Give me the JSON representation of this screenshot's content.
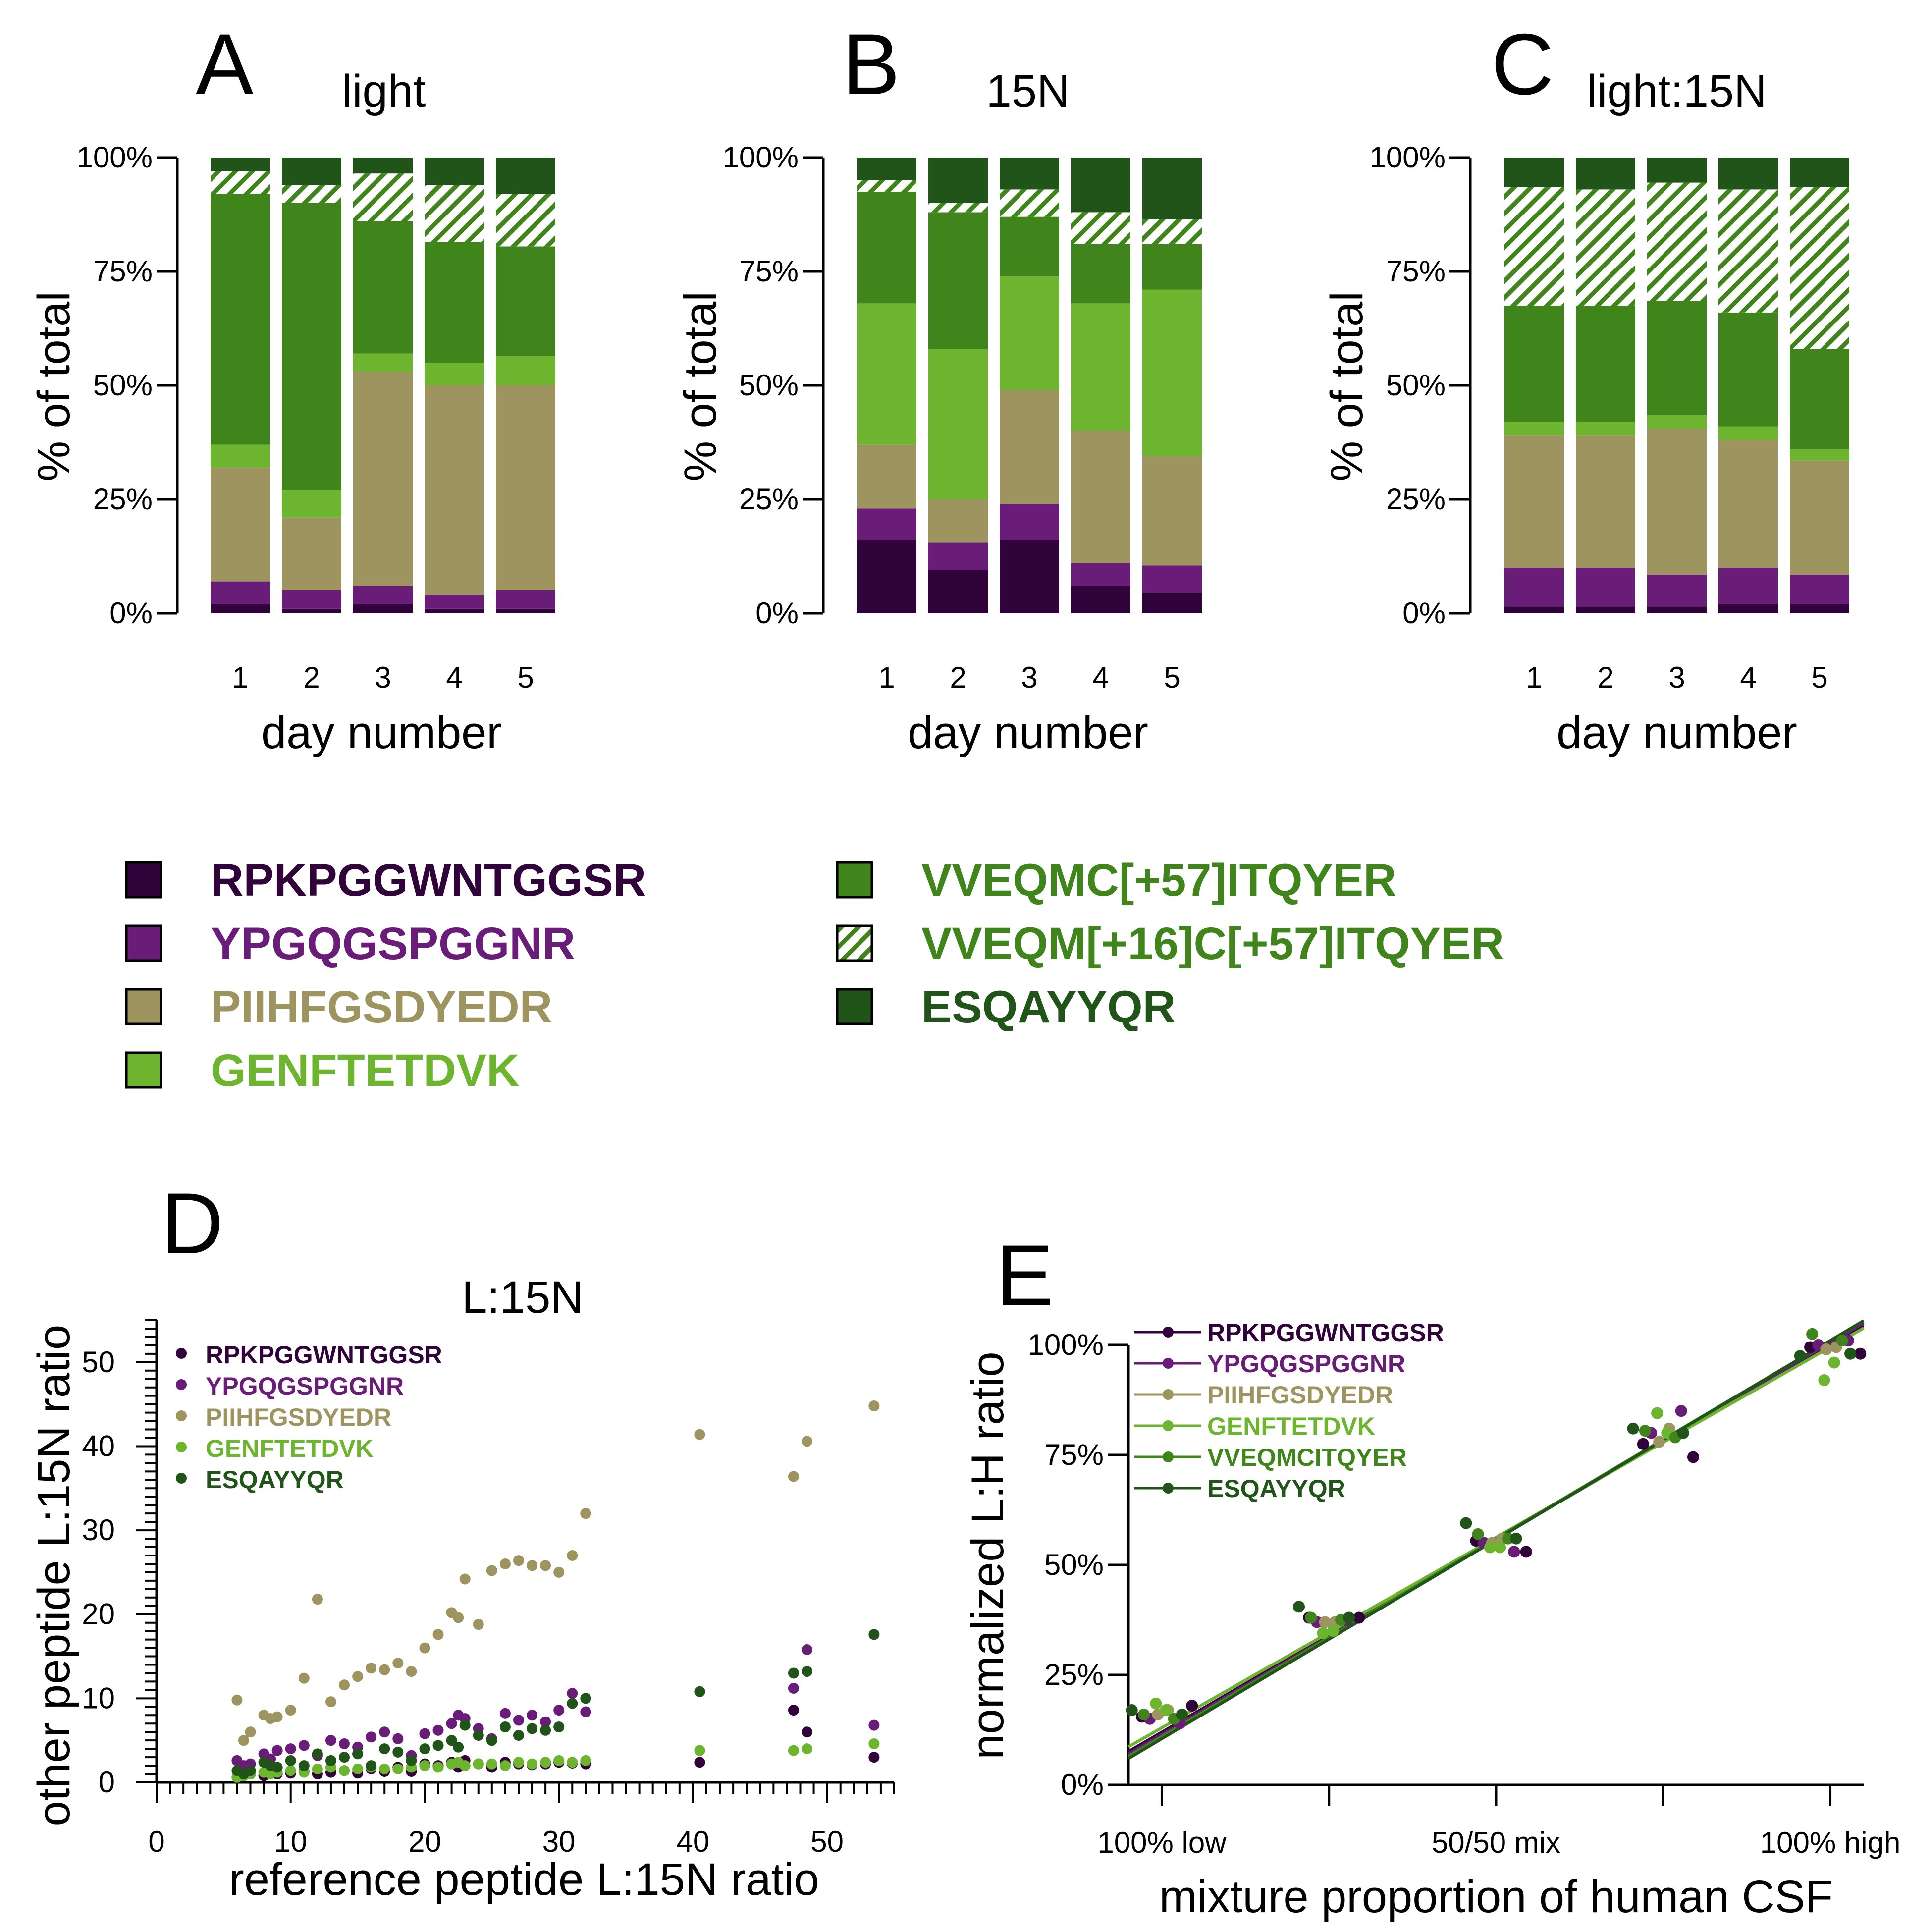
{
  "colors": {
    "RPKPGGWNTGGSR": "#30043a",
    "YPGQGSPGGNR": "#6a1d78",
    "PIIHFGSDYEDR": "#9e9460",
    "GENFTETDVK": "#6db42f",
    "VVEQMC[+57]ITQYER": "#3f851b",
    "VVEQM[+16]C[+57]ITQYER": "#3f851b",
    "VVEQMCITQYER": "#3f851b",
    "ESQAYYQR": "#215419"
  },
  "legend": {
    "items": [
      {
        "label": "RPKPGGWNTGGSR",
        "hatched": false
      },
      {
        "label": "YPGQGSPGGNR",
        "hatched": false
      },
      {
        "label": "PIIHFGSDYEDR",
        "hatched": false
      },
      {
        "label": "GENFTETDVK",
        "hatched": false
      },
      {
        "label": "VVEQMC[+57]ITQYER",
        "hatched": false
      },
      {
        "label": "VVEQM[+16]C[+57]ITQYER",
        "hatched": true
      },
      {
        "label": "ESQAYYQR",
        "hatched": false
      }
    ]
  },
  "chart_data": [
    {
      "panel": "A",
      "type": "bar",
      "stacked": true,
      "title": "light",
      "xlabel": "day number",
      "ylabel": "% of total",
      "ylim": [
        0,
        100
      ],
      "yticks": [
        "0%",
        "25%",
        "50%",
        "75%",
        "100%"
      ],
      "categories": [
        "1",
        "2",
        "3",
        "4",
        "5"
      ],
      "series": [
        {
          "name": "RPKPGGWNTGGSR",
          "values": [
            2,
            1,
            2,
            1,
            1
          ]
        },
        {
          "name": "YPGQGSPGGNR",
          "values": [
            5,
            4,
            4,
            3,
            4
          ]
        },
        {
          "name": "PIIHFGSDYEDR",
          "values": [
            25,
            16,
            47,
            46,
            45
          ]
        },
        {
          "name": "GENFTETDVK",
          "values": [
            5,
            6,
            4,
            5,
            6.5
          ]
        },
        {
          "name": "VVEQMC[+57]ITQYER",
          "values": [
            55,
            63,
            29,
            26.5,
            24
          ]
        },
        {
          "name": "VVEQM[+16]C[+57]ITQYER",
          "values": [
            5,
            4,
            10.5,
            12.5,
            11.5
          ]
        },
        {
          "name": "ESQAYYQR",
          "values": [
            3,
            6,
            3.5,
            6,
            8
          ]
        }
      ]
    },
    {
      "panel": "B",
      "type": "bar",
      "stacked": true,
      "title": "15N",
      "xlabel": "day number",
      "ylabel": "% of total",
      "ylim": [
        0,
        100
      ],
      "yticks": [
        "0%",
        "25%",
        "50%",
        "75%",
        "100%"
      ],
      "categories": [
        "1",
        "2",
        "3",
        "4",
        "5"
      ],
      "series": [
        {
          "name": "RPKPGGWNTGGSR",
          "values": [
            16,
            9.5,
            16,
            6,
            4.5
          ]
        },
        {
          "name": "YPGQGSPGGNR",
          "values": [
            7,
            6,
            8,
            5,
            6
          ]
        },
        {
          "name": "PIIHFGSDYEDR",
          "values": [
            14,
            9.5,
            25,
            29,
            24
          ]
        },
        {
          "name": "GENFTETDVK",
          "values": [
            31,
            33,
            25,
            28,
            36.5
          ]
        },
        {
          "name": "VVEQMC[+57]ITQYER",
          "values": [
            24.5,
            30,
            13,
            13,
            10
          ]
        },
        {
          "name": "VVEQM[+16]C[+57]ITQYER",
          "values": [
            2.5,
            2,
            6,
            7,
            5.5
          ]
        },
        {
          "name": "ESQAYYQR",
          "values": [
            5,
            10,
            7,
            12,
            13.5
          ]
        }
      ]
    },
    {
      "panel": "C",
      "type": "bar",
      "stacked": true,
      "title": "light:15N",
      "xlabel": "day number",
      "ylabel": "% of total",
      "ylim": [
        0,
        100
      ],
      "yticks": [
        "0%",
        "25%",
        "50%",
        "75%",
        "100%"
      ],
      "categories": [
        "1",
        "2",
        "3",
        "4",
        "5"
      ],
      "series": [
        {
          "name": "RPKPGGWNTGGSR",
          "values": [
            1.5,
            1.5,
            1.5,
            2,
            2
          ]
        },
        {
          "name": "YPGQGSPGGNR",
          "values": [
            8.5,
            8.5,
            7,
            8,
            6.5
          ]
        },
        {
          "name": "PIIHFGSDYEDR",
          "values": [
            29,
            29,
            32,
            28,
            25
          ]
        },
        {
          "name": "GENFTETDVK",
          "values": [
            3,
            3,
            3,
            3,
            2.5
          ]
        },
        {
          "name": "VVEQMC[+57]ITQYER",
          "values": [
            25.5,
            25.5,
            25,
            25,
            22
          ]
        },
        {
          "name": "VVEQM[+16]C[+57]ITQYER",
          "values": [
            26,
            25.5,
            26,
            27,
            35.5
          ]
        },
        {
          "name": "ESQAYYQR",
          "values": [
            6.5,
            7,
            5.5,
            7,
            6.5
          ]
        }
      ]
    },
    {
      "panel": "D",
      "type": "scatter",
      "title": "L:15N",
      "xlabel": "reference peptide L:15N ratio",
      "ylabel": "other peptide L:15N ratio",
      "xlim": [
        0,
        55
      ],
      "ylim": [
        0,
        55
      ],
      "xticks": [
        0,
        10,
        20,
        30,
        40,
        50
      ],
      "yticks": [
        0,
        10,
        20,
        30,
        40,
        50
      ],
      "x": [
        6,
        6.5,
        7,
        8,
        8.5,
        9,
        10,
        11,
        12,
        13,
        14,
        15,
        16,
        17,
        18,
        19,
        20,
        21,
        22,
        22.5,
        23,
        24,
        25,
        26,
        27,
        28,
        29,
        30,
        31,
        32,
        40.5,
        47.5,
        48.5,
        53.5
      ],
      "series": [
        {
          "name": "RPKPGGWNTGGSR",
          "values": [
            0.6,
            0.8,
            1,
            0.8,
            1.2,
            1,
            1.1,
            1.3,
            1,
            1.2,
            1.4,
            1.1,
            1.6,
            1.3,
            1.8,
            1.3,
            2.2,
            2,
            2.4,
            1.8,
            2.6,
            2.2,
            1.8,
            2.4,
            2.2,
            2.1,
            2.2,
            2.4,
            2.3,
            2.2,
            2.4,
            8.6,
            6,
            3
          ]
        },
        {
          "name": "YPGQGSPGGNR",
          "values": [
            2.6,
            2,
            2.2,
            3.4,
            2.8,
            3.8,
            4,
            4.4,
            3.2,
            5,
            4.6,
            4.2,
            5.4,
            6,
            5.2,
            3.2,
            5.8,
            6.2,
            7,
            8,
            7.6,
            6.4,
            5.2,
            8.2,
            7.4,
            8,
            7.2,
            8.6,
            10.6,
            8.4,
            10.8,
            11.2,
            15.8,
            6.8
          ]
        },
        {
          "name": "PIIHFGSDYEDR",
          "values": [
            9.8,
            5,
            6,
            8,
            7.6,
            7.8,
            8.6,
            12.4,
            21.8,
            9.6,
            11.6,
            12.6,
            13.6,
            13.4,
            14.2,
            13.2,
            16,
            17.6,
            20.2,
            19.6,
            24.2,
            18.8,
            25.2,
            26,
            26.4,
            25.8,
            25.8,
            25,
            27,
            32,
            41.4,
            36.4,
            40.6,
            44.8
          ]
        },
        {
          "name": "GENFTETDVK",
          "values": [
            0.6,
            0.8,
            1,
            1.2,
            1,
            1.2,
            1.4,
            1.2,
            1.6,
            1.8,
            1.4,
            1.6,
            1.8,
            1.6,
            1.6,
            1.8,
            2,
            1.8,
            2.2,
            2.4,
            2,
            2.2,
            2.2,
            2,
            2.4,
            2.2,
            2.4,
            2.6,
            2.4,
            2.6,
            3.8,
            3.8,
            4,
            4.6
          ]
        },
        {
          "name": "ESQAYYQR",
          "values": [
            1.4,
            1,
            1.4,
            2.4,
            2,
            1.8,
            2.6,
            2,
            3.4,
            2.6,
            3,
            3.4,
            2,
            4,
            3.6,
            2.6,
            4,
            4.4,
            5,
            4.2,
            6.8,
            5.6,
            5,
            6.6,
            5.6,
            6.4,
            6.2,
            6.6,
            9.4,
            10,
            10.8,
            13,
            13.2,
            17.6
          ]
        }
      ]
    },
    {
      "panel": "E",
      "type": "scatter",
      "title": "",
      "xlabel": "mixture proportion of human CSF",
      "ylabel": "normalized L:H ratio",
      "xlim": [
        -0.05,
        1.05
      ],
      "ylim": [
        0,
        100
      ],
      "xtick_positions": [
        0,
        0.25,
        0.5,
        0.75,
        1
      ],
      "xticks": [
        "100% low",
        "",
        "50/50 mix",
        "",
        "100% high"
      ],
      "yticks": [
        "0%",
        "25%",
        "50%",
        "75%",
        "100%"
      ],
      "x": [
        0,
        0.25,
        0.5,
        0.75,
        1
      ],
      "series": [
        {
          "name": "RPKPGGWNTGGSR",
          "values": [
            15.5,
            38,
            55.5,
            77.5,
            99.5
          ],
          "points": [
            18,
            38,
            53,
            74.5,
            98
          ],
          "fit": [
            12,
            100
          ]
        },
        {
          "name": "YPGQGSPGGNR",
          "values": [
            15,
            37,
            55,
            80,
            100
          ],
          "points": [
            14,
            37.5,
            53,
            85,
            101
          ],
          "fit": [
            11.5,
            100.5
          ]
        },
        {
          "name": "PIIHFGSDYEDR",
          "values": [
            16,
            37,
            55,
            78,
            99
          ],
          "points": [
            17,
            37,
            56,
            81,
            99.5
          ],
          "fit": [
            13,
            99.5
          ]
        },
        {
          "name": "GENFTETDVK",
          "values": [
            17,
            35,
            54,
            80,
            96
          ],
          "points": [
            18.5,
            34.5,
            54,
            84.5,
            92
          ],
          "fit": [
            13,
            99.5
          ]
        },
        {
          "name": "VVEQMCITQYER",
          "values": [
            15,
            37.5,
            56,
            79,
            101
          ],
          "points": [
            16,
            38,
            57,
            80.5,
            102.5
          ],
          "fit": [
            11,
            101
          ]
        },
        {
          "name": "ESQAYYQR",
          "values": [
            16,
            38,
            56,
            80,
            98
          ],
          "points": [
            17,
            40.5,
            59.5,
            81,
            97.5
          ],
          "fit": [
            10.5,
            101
          ]
        }
      ]
    }
  ],
  "panel_labels": {
    "A": "A",
    "B": "B",
    "C": "C",
    "D": "D",
    "E": "E"
  }
}
